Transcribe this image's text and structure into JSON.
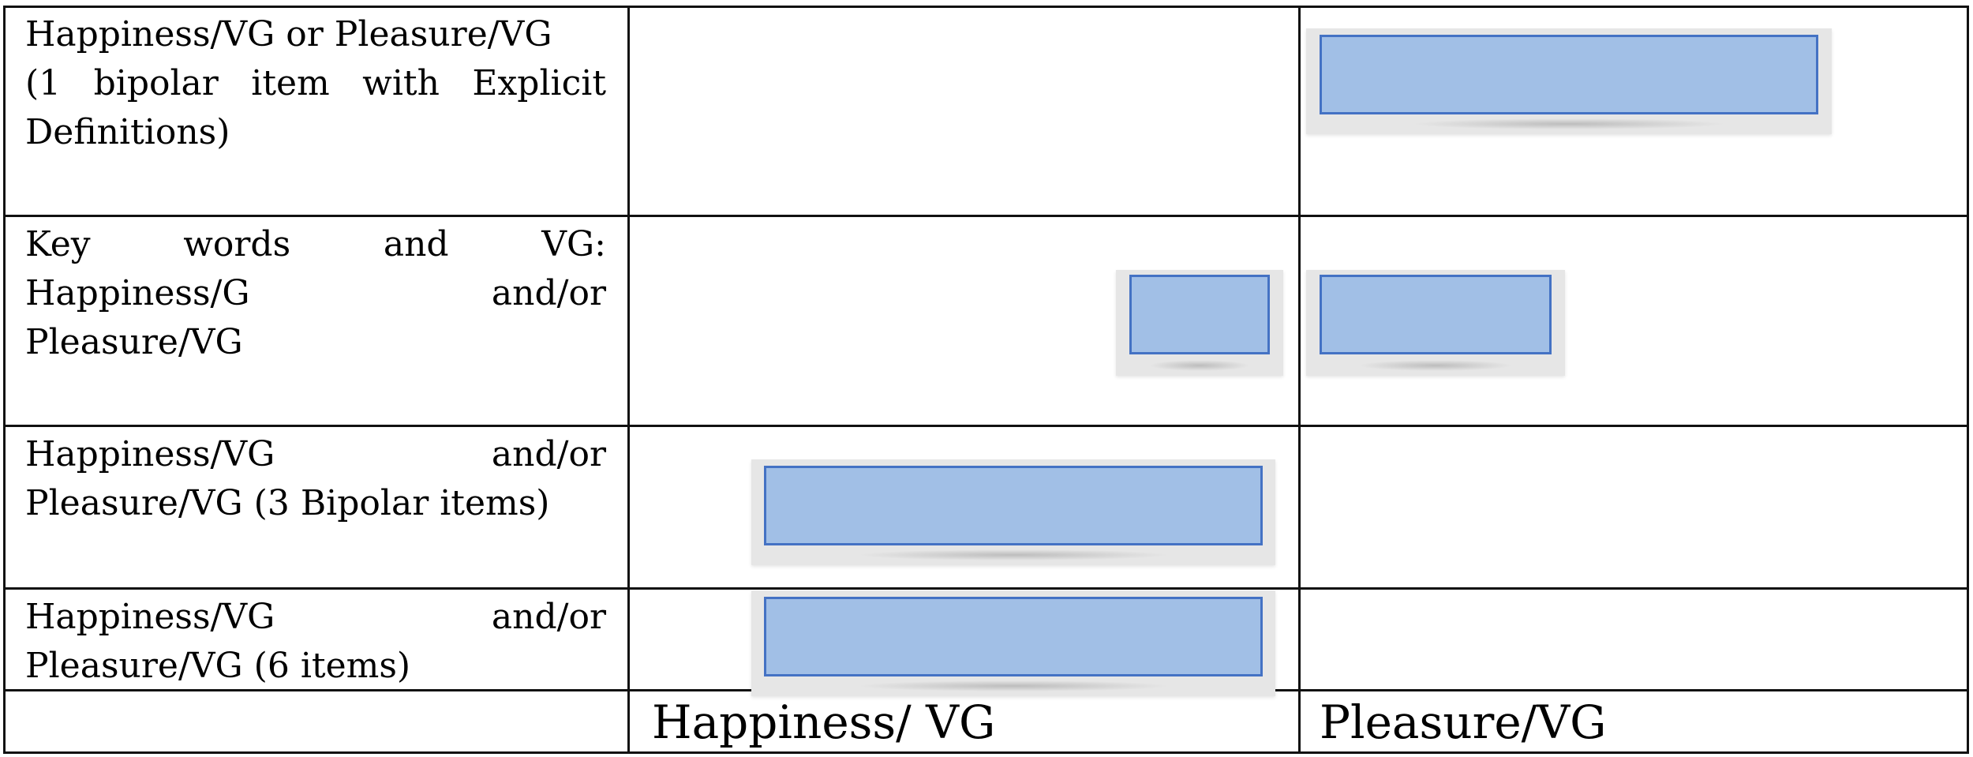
{
  "rows": [
    {
      "label_lines": [
        "Happiness/VG or Pleasure/VG",
        "(1 bipolar item with Explicit",
        "Definitions)"
      ],
      "happiness": false,
      "pleasure": true
    },
    {
      "label_lines": [
        "Key words and VG:",
        "Happiness/G and/or",
        "Pleasure/VG"
      ],
      "happiness": true,
      "pleasure": true
    },
    {
      "label_lines": [
        "Happiness/VG and/or",
        "Pleasure/VG (3 Bipolar items)"
      ],
      "happiness": true,
      "pleasure": false
    },
    {
      "label_lines": [
        "Happiness/VG and/or",
        "Pleasure/VG (6 items)"
      ],
      "happiness": true,
      "pleasure": false
    }
  ],
  "columns": {
    "happiness": "Happiness/ VG",
    "pleasure": "Pleasure/VG"
  },
  "colors": {
    "bar_fill": "#a1bfe6",
    "bar_border": "#4472c4"
  }
}
